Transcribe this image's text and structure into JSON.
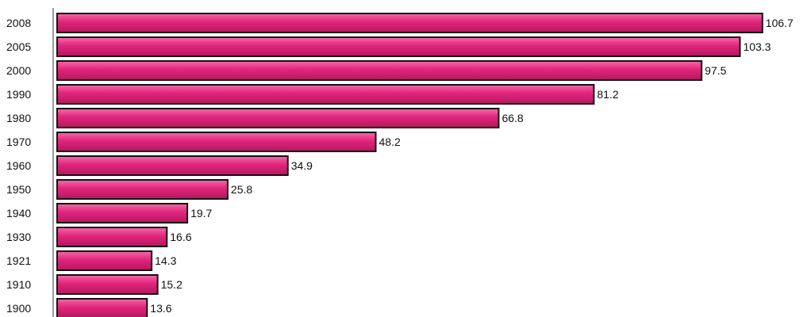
{
  "chart_data": {
    "type": "bar",
    "orientation": "horizontal",
    "categories": [
      "2008",
      "2005",
      "2000",
      "1990",
      "1980",
      "1970",
      "1960",
      "1950",
      "1940",
      "1930",
      "1921",
      "1910",
      "1900"
    ],
    "values": [
      106.7,
      103.3,
      97.5,
      81.2,
      66.8,
      48.2,
      34.9,
      25.8,
      19.7,
      16.6,
      14.3,
      15.2,
      13.6
    ],
    "value_labels": [
      "106.7",
      "103.3",
      "97.5",
      "81.2",
      "66.8",
      "48.2",
      "34.9",
      "25.8",
      "19.7",
      "16.6",
      "14.3",
      "15.2",
      "13.6"
    ],
    "title": "",
    "xlabel": "",
    "ylabel": "",
    "grid": false,
    "legend": "none",
    "colors": {
      "bar_fill": "#e0257c",
      "bar_highlight": "#f56aa8",
      "bar_shadow": "#b5175f",
      "bar_stroke": "#111111",
      "axis": "#333333"
    }
  }
}
